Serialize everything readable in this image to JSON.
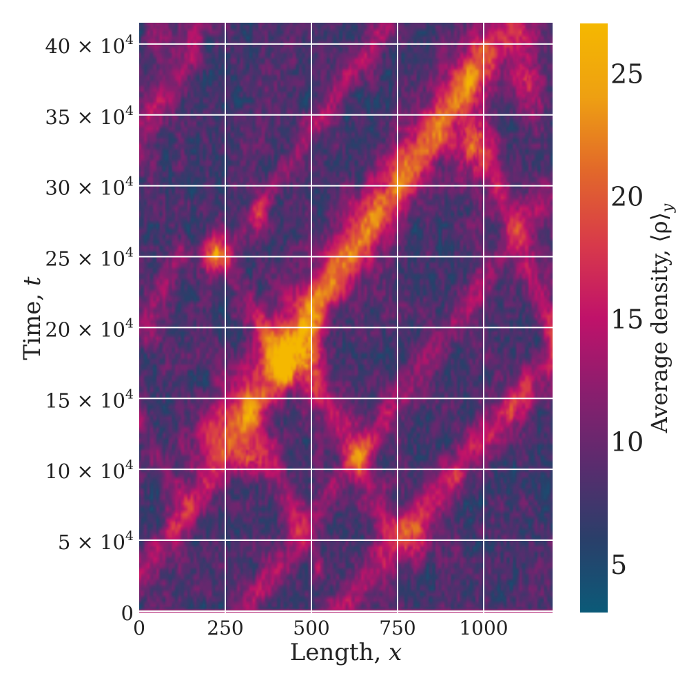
{
  "chart_data": {
    "type": "heatmap",
    "title": "",
    "xlabel": "Length, ",
    "xlabel_var": "x",
    "ylabel": "Time, ",
    "ylabel_var": "t",
    "xlim": [
      0,
      1200
    ],
    "ylim": [
      -1000,
      415000
    ],
    "x_ticks": [
      {
        "value": 0,
        "label": "0"
      },
      {
        "value": 250,
        "label": "250"
      },
      {
        "value": 500,
        "label": "500"
      },
      {
        "value": 750,
        "label": "750"
      },
      {
        "value": 1000,
        "label": "1000"
      }
    ],
    "y_ticks": [
      {
        "value": 0,
        "label": "0",
        "mult": "",
        "power": ""
      },
      {
        "value": 50000,
        "label": "5",
        "mult": " × 10",
        "power": "4"
      },
      {
        "value": 100000,
        "label": "10",
        "mult": " × 10",
        "power": "4"
      },
      {
        "value": 150000,
        "label": "15",
        "mult": " × 10",
        "power": "4"
      },
      {
        "value": 200000,
        "label": "20",
        "mult": " × 10",
        "power": "4"
      },
      {
        "value": 250000,
        "label": "25",
        "mult": " × 10",
        "power": "4"
      },
      {
        "value": 300000,
        "label": "30",
        "mult": " × 10",
        "power": "4"
      },
      {
        "value": 350000,
        "label": "35",
        "mult": " × 10",
        "power": "4"
      },
      {
        "value": 400000,
        "label": "40",
        "mult": " × 10",
        "power": "4"
      }
    ],
    "grid": true,
    "colorbar": {
      "label": "Average density, ⟨ρ⟩",
      "label_sub": "y",
      "range": [
        3,
        27
      ],
      "ticks": [
        {
          "value": 5,
          "label": "5"
        },
        {
          "value": 10,
          "label": "10"
        },
        {
          "value": 15,
          "label": "15"
        },
        {
          "value": 20,
          "label": "20"
        },
        {
          "value": 25,
          "label": "25"
        }
      ],
      "colors": [
        "#0b5a78",
        "#2a3f6a",
        "#5a2c6e",
        "#8a1e6e",
        "#c0126a",
        "#d83a4a",
        "#e2682a",
        "#eea012",
        "#f5b800"
      ]
    },
    "background_density": 8,
    "bands": [
      {
        "x0": 580,
        "t0": 0,
        "x1": 1200,
        "t1": 180000,
        "width": 55,
        "peak": 15
      },
      {
        "x0": 310,
        "t0": 0,
        "x1": 1200,
        "t1": 300000,
        "width": 45,
        "peak": 13
      },
      {
        "x0": 0,
        "t0": 20000,
        "x1": 1000,
        "t1": 390000,
        "width": 55,
        "peak": 14
      },
      {
        "x0": 200,
        "t0": 120000,
        "x1": 1080,
        "t1": 415000,
        "width": 90,
        "peak": 16
      },
      {
        "x0": 250,
        "t0": 250000,
        "x1": 720,
        "t1": 415000,
        "width": 35,
        "peak": 13
      },
      {
        "x0": 0,
        "t0": 330000,
        "x1": 180,
        "t1": 415000,
        "width": 60,
        "peak": 13
      },
      {
        "x0": 480,
        "t0": 50000,
        "x1": 320,
        "t1": 140000,
        "width": 45,
        "peak": 14
      },
      {
        "x0": 720,
        "t0": 60000,
        "x1": 520,
        "t1": 160000,
        "width": 50,
        "peak": 14
      },
      {
        "x0": 420,
        "t0": 170000,
        "x1": 220,
        "t1": 260000,
        "width": 40,
        "peak": 13
      },
      {
        "x0": 1000,
        "t0": 330000,
        "x1": 1200,
        "t1": 200000,
        "width": 50,
        "peak": 14
      },
      {
        "x0": 0,
        "t0": 200000,
        "x1": 110,
        "t1": 250000,
        "width": 40,
        "peak": 13
      },
      {
        "x0": 0,
        "t0": 130000,
        "x1": 140,
        "t1": 70000,
        "width": 40,
        "peak": 12
      }
    ],
    "hotspots": [
      {
        "x": 430,
        "t": 175000,
        "rx": 35,
        "rt": 12000,
        "peak": 24
      },
      {
        "x": 500,
        "t": 180000,
        "rx": 25,
        "rt": 20000,
        "peak": 22
      },
      {
        "x": 215,
        "t": 250000,
        "rx": 22,
        "rt": 9000,
        "peak": 25
      },
      {
        "x": 320,
        "t": 105000,
        "rx": 35,
        "rt": 9000,
        "peak": 23
      },
      {
        "x": 970,
        "t": 325000,
        "rx": 35,
        "rt": 25000,
        "peak": 22
      },
      {
        "x": 1130,
        "t": 375000,
        "rx": 30,
        "rt": 20000,
        "peak": 21
      },
      {
        "x": 800,
        "t": 50000,
        "rx": 28,
        "rt": 12000,
        "peak": 22
      },
      {
        "x": 650,
        "t": 112000,
        "rx": 30,
        "rt": 10000,
        "peak": 20
      },
      {
        "x": 60,
        "t": 405000,
        "rx": 30,
        "rt": 10000,
        "peak": 18
      },
      {
        "x": 40,
        "t": 195000,
        "rx": 18,
        "rt": 8000,
        "peak": 19
      },
      {
        "x": 1080,
        "t": 140000,
        "rx": 20,
        "rt": 8000,
        "peak": 19
      },
      {
        "x": 350,
        "t": 280000,
        "rx": 20,
        "rt": 10000,
        "peak": 19
      },
      {
        "x": 920,
        "t": 95000,
        "rx": 15,
        "rt": 5000,
        "peak": 19
      },
      {
        "x": 520,
        "t": 30000,
        "rx": 12,
        "rt": 5000,
        "peak": 18
      },
      {
        "x": 100,
        "t": 60000,
        "rx": 15,
        "rt": 5000,
        "peak": 18
      }
    ]
  }
}
